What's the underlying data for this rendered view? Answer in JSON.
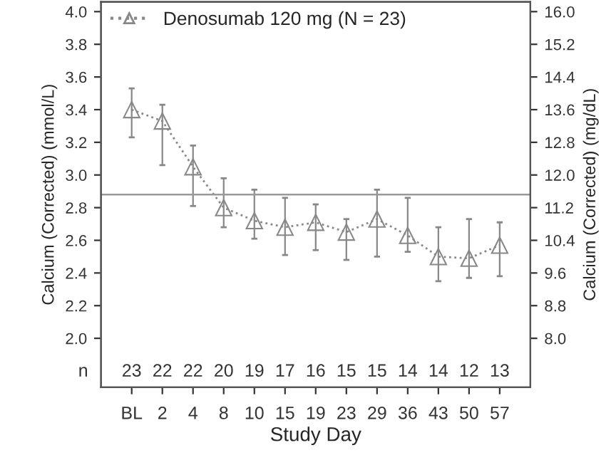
{
  "chart_data": {
    "type": "line",
    "xlabel": "Study Day",
    "ylabel": "Calcium (Corrected) (mmol/L)",
    "y2label": "Calcium (Corrected) (mg/dL)",
    "categories": [
      "BL",
      "2",
      "4",
      "8",
      "10",
      "15",
      "19",
      "23",
      "29",
      "36",
      "43",
      "50",
      "57"
    ],
    "series": [
      {
        "name": "Denosumab 120 mg (N = 23)",
        "color": "#888888",
        "values": [
          3.4,
          3.33,
          3.05,
          2.8,
          2.72,
          2.68,
          2.71,
          2.65,
          2.73,
          2.63,
          2.5,
          2.49,
          2.57
        ],
        "errors": [
          [
            3.23,
            3.53
          ],
          [
            3.06,
            3.43
          ],
          [
            2.81,
            3.18
          ],
          [
            2.68,
            2.98
          ],
          [
            2.61,
            2.91
          ],
          [
            2.51,
            2.86
          ],
          [
            2.54,
            2.82
          ],
          [
            2.48,
            2.73
          ],
          [
            2.5,
            2.91
          ],
          [
            2.53,
            2.86
          ],
          [
            2.35,
            2.68
          ],
          [
            2.37,
            2.73
          ],
          [
            2.38,
            2.71
          ]
        ]
      }
    ],
    "ylim": [
      1.7,
      4.06
    ],
    "yticks": [
      {
        "value": 2,
        "label": "2.0"
      },
      2.2,
      2.4,
      2.6,
      2.8,
      {
        "value": 3,
        "label": "3.0"
      },
      3.2,
      3.4,
      3.6,
      3.8,
      {
        "value": 4,
        "label": "4.0"
      }
    ],
    "y2lim": [
      6.8,
      16.24
    ],
    "y2ticks": [
      {
        "value": 8,
        "label": "8.0"
      },
      8.8,
      9.6,
      10.4,
      11.2,
      {
        "value": 12,
        "label": "12.0"
      },
      12.8,
      13.6,
      14.4,
      15.2,
      {
        "value": 16,
        "label": "16.0"
      }
    ],
    "ref_lines": [
      {
        "axis": "y",
        "value": 2.88,
        "color": "#999999"
      }
    ],
    "annotations": [
      "n",
      "23",
      "22",
      "22",
      "20",
      "19",
      "17",
      "16",
      "15",
      "15",
      "14",
      "14",
      "12",
      "13"
    ],
    "marker": "triangle",
    "line_style": "dotted",
    "grid": false,
    "legend": "top left"
  }
}
